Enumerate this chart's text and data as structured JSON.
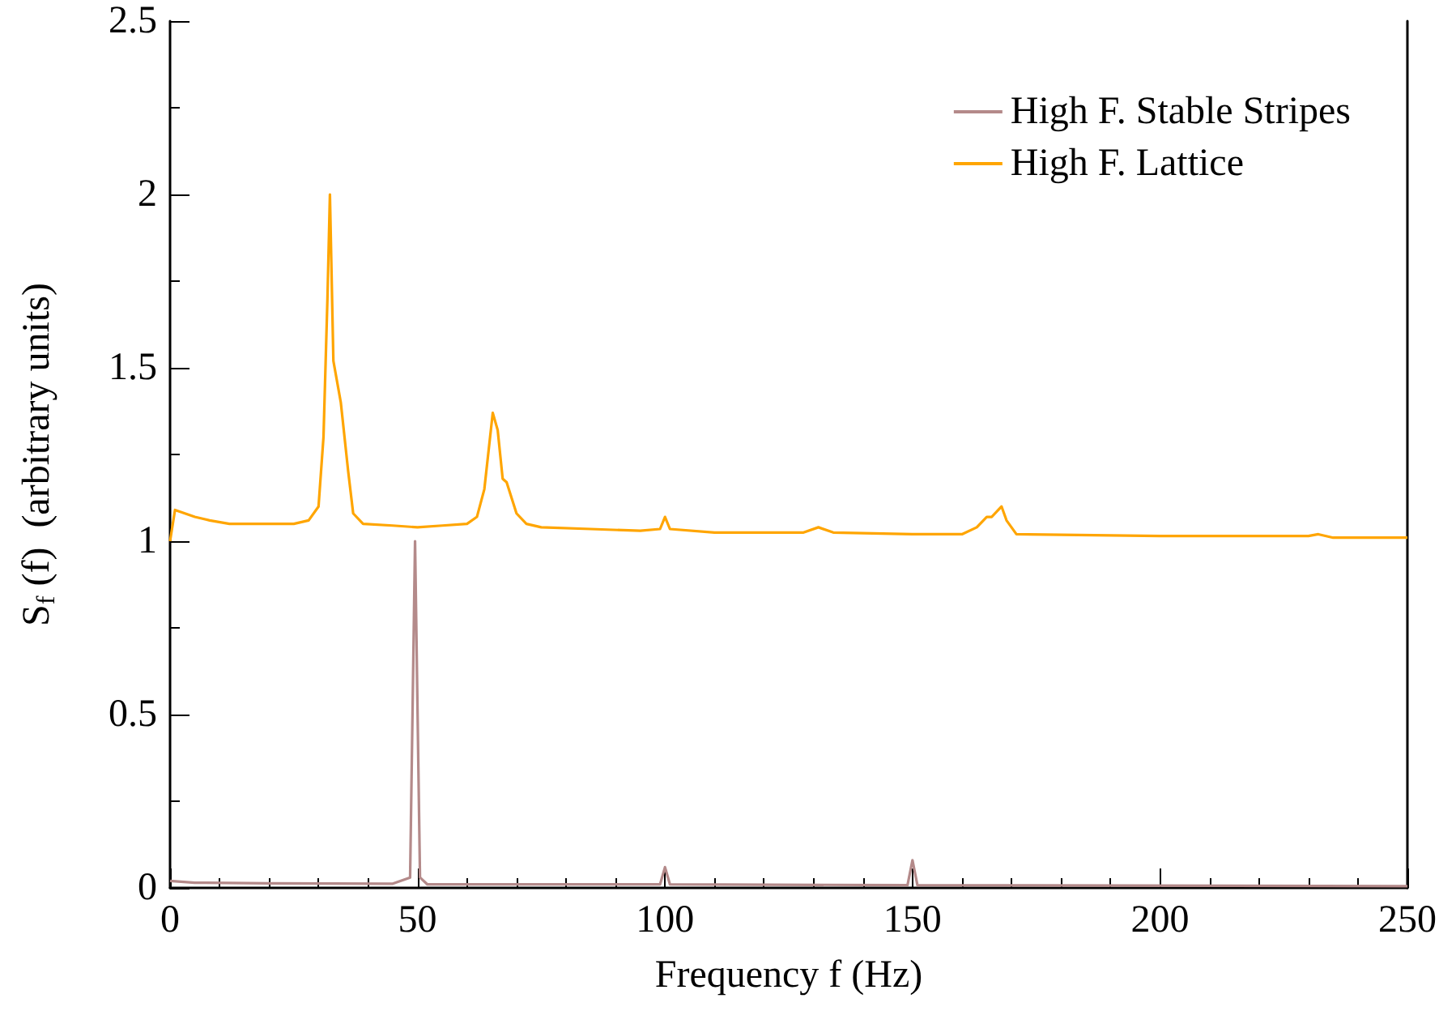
{
  "chart_data": {
    "type": "line",
    "xlabel": "Frequency f (Hz)",
    "ylabel": "S$_{f}$ (f)  (arbitrary units)",
    "xlim": [
      0,
      250
    ],
    "xticks": [
      0,
      50,
      100,
      150,
      200,
      250
    ],
    "ylim": [
      0,
      2.5
    ],
    "yticks": [
      0,
      0.5,
      1,
      1.5,
      2,
      2.5
    ],
    "grid": false,
    "legend": "top right",
    "marker": "none",
    "line_style": "solid",
    "series": [
      {
        "name": "High F. Stable Stripes",
        "color": "#b48a8a",
        "x": [
          0,
          5,
          20,
          45,
          48.5,
          49.5,
          50.5,
          52,
          99,
          100,
          101,
          149,
          150,
          151,
          250
        ],
        "values": [
          0.02,
          0.015,
          0.013,
          0.012,
          0.03,
          1.0,
          0.03,
          0.01,
          0.01,
          0.06,
          0.01,
          0.008,
          0.08,
          0.008,
          0.005
        ]
      },
      {
        "name": "High F. Lattice",
        "color": "#ffa500",
        "x": [
          0,
          1,
          3,
          5,
          8,
          12,
          20,
          22,
          25,
          28,
          30,
          31,
          31.8,
          32.3,
          33,
          34.5,
          36,
          37,
          39,
          45,
          50,
          55,
          60,
          62,
          63.5,
          65.2,
          66.2,
          67.2,
          68,
          70,
          72,
          75,
          85,
          95,
          99,
          100,
          101,
          110,
          120,
          128,
          131,
          134,
          150,
          160,
          163,
          165,
          166,
          168,
          169,
          171,
          200,
          230,
          232,
          235,
          250
        ],
        "values": [
          1.0,
          1.09,
          1.08,
          1.07,
          1.06,
          1.05,
          1.05,
          1.05,
          1.05,
          1.06,
          1.1,
          1.3,
          1.7,
          2.0,
          1.52,
          1.4,
          1.2,
          1.08,
          1.05,
          1.045,
          1.04,
          1.045,
          1.05,
          1.07,
          1.15,
          1.37,
          1.32,
          1.18,
          1.17,
          1.08,
          1.05,
          1.04,
          1.035,
          1.03,
          1.035,
          1.07,
          1.035,
          1.025,
          1.025,
          1.025,
          1.04,
          1.025,
          1.02,
          1.02,
          1.04,
          1.07,
          1.07,
          1.1,
          1.06,
          1.02,
          1.015,
          1.015,
          1.02,
          1.01,
          1.01
        ]
      }
    ]
  }
}
